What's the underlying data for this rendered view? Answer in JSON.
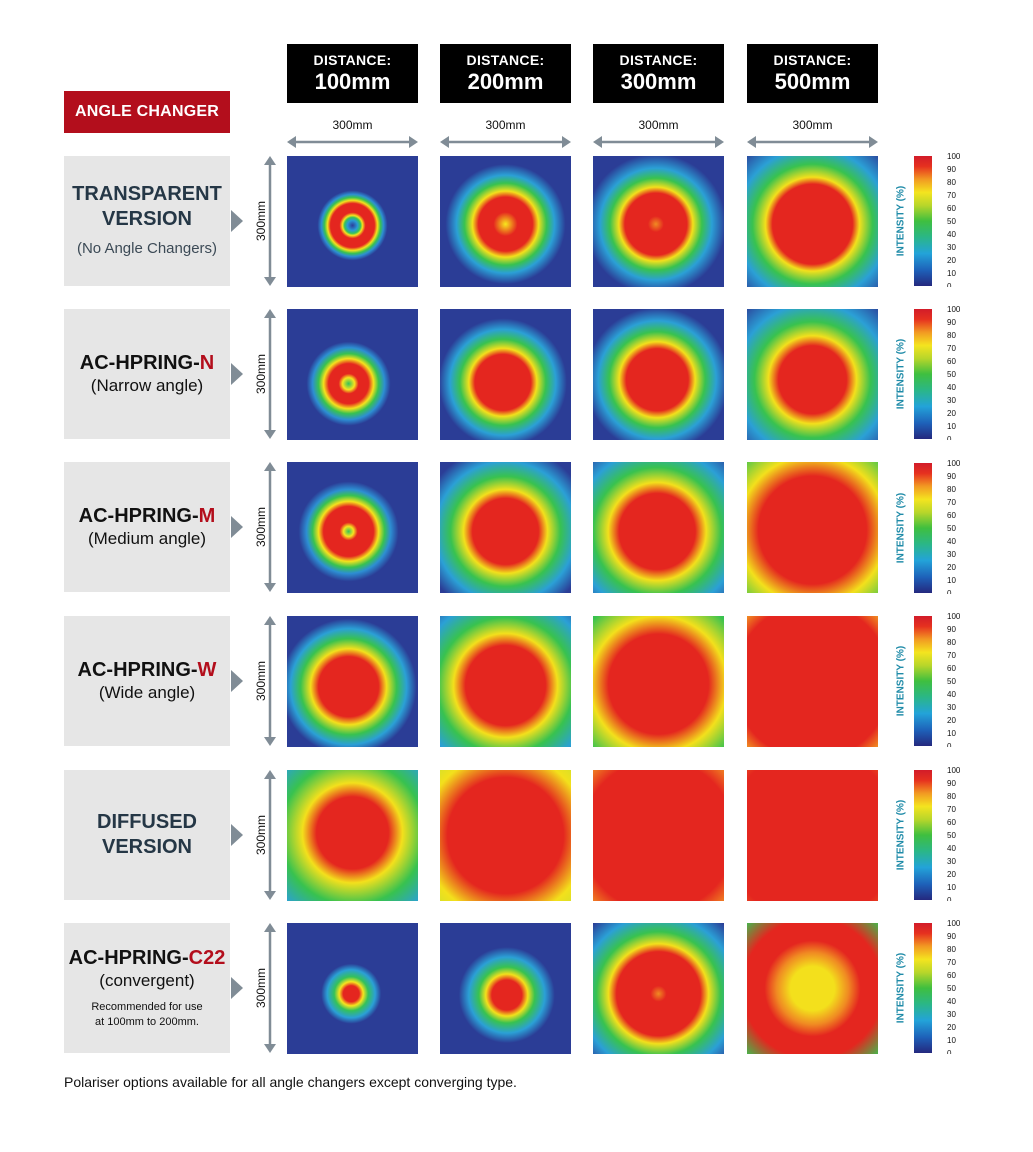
{
  "angle_changer_label": "ANGLE CHANGER",
  "distance_label": "DISTANCE:",
  "distances": [
    "100mm",
    "200mm",
    "300mm",
    "500mm"
  ],
  "width_dimension": "300mm",
  "height_dimension": "300mm",
  "intensity_axis": {
    "title": "INTENSITY (%)",
    "ticks": [
      "100",
      "90",
      "80",
      "70",
      "60",
      "50",
      "40",
      "30",
      "20",
      "10",
      "0"
    ]
  },
  "rows": [
    {
      "id": "transparent",
      "title_lines": [
        "TRANSPARENT",
        "VERSION"
      ],
      "sub": "(No Angle Changers)"
    },
    {
      "id": "narrow",
      "code": "AC-HPRING-",
      "code_suffix": "N",
      "sub": "(Narrow angle)"
    },
    {
      "id": "medium",
      "code": "AC-HPRING-",
      "code_suffix": "M",
      "sub": "(Medium angle)"
    },
    {
      "id": "wide",
      "code": "AC-HPRING-",
      "code_suffix": "W",
      "sub": "(Wide angle)"
    },
    {
      "id": "diffused",
      "title_lines": [
        "DIFFUSED",
        "VERSION"
      ]
    },
    {
      "id": "convergent",
      "code": "AC-HPRING-",
      "code_suffix": "C22",
      "sub": "(convergent)",
      "note_lines": [
        "Recommended for use",
        "at 100mm to 200mm."
      ]
    }
  ],
  "footnote": "Polariser options available for all angle changers except converging type.",
  "colors": {
    "accent_red": "#b30e1c",
    "label_bg": "#e6e6e6",
    "heading_slate": "#253746",
    "header_black": "#000000",
    "map_background_blue": "#2b3d96"
  }
}
